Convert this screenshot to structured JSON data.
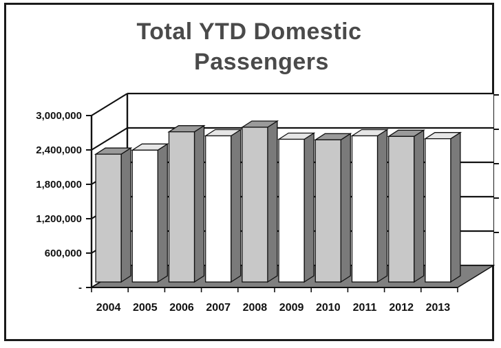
{
  "chart_data": {
    "type": "bar",
    "title_lines": [
      "Total YTD Domestic",
      "Passengers"
    ],
    "categories": [
      "2004",
      "2005",
      "2006",
      "2007",
      "2008",
      "2009",
      "2010",
      "2011",
      "2012",
      "2013"
    ],
    "values": [
      2230000,
      2300000,
      2620000,
      2550000,
      2700000,
      2490000,
      2480000,
      2550000,
      2540000,
      2500000
    ],
    "ylim": [
      0,
      3000000
    ],
    "y_ticks": [
      0,
      600000,
      1200000,
      1800000,
      2400000,
      3000000
    ],
    "y_tick_labels": [
      "-",
      "600,000",
      "1,200,000",
      "1,800,000",
      "2,400,000",
      "3,000,000"
    ],
    "three_d": true,
    "bar_colors": [
      "#c8c8c8",
      "#ffffff",
      "#c8c8c8",
      "#ffffff",
      "#c8c8c8",
      "#ffffff",
      "#c8c8c8",
      "#ffffff",
      "#c8c8c8",
      "#ffffff"
    ],
    "floor_color": "#808080",
    "side_color": "#7a7a7a",
    "legend": "none"
  }
}
